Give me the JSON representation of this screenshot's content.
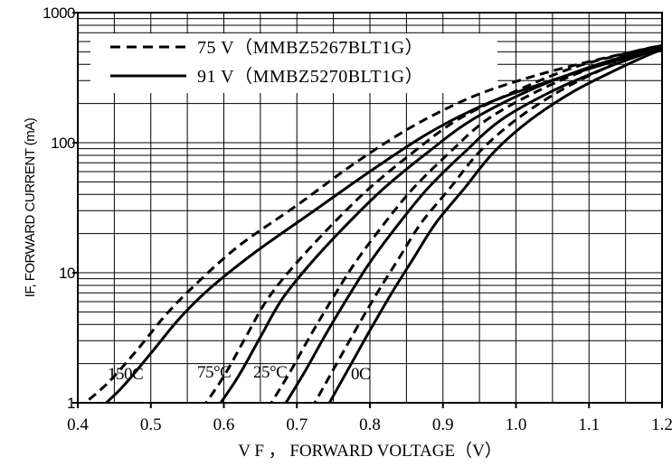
{
  "chart_data": {
    "type": "line",
    "title": "",
    "xlabel": "V F ， FORWARD VOLTAGE（V）",
    "ylabel": "IF, FORWARD CURRENT (mA)",
    "x_scale": "linear",
    "y_scale": "log",
    "xlim": [
      0.4,
      1.2
    ],
    "ylim": [
      1,
      1000
    ],
    "grid": true,
    "legend_position": "top-left",
    "x_ticks": [
      "0.4",
      "0.5",
      "0.6",
      "0.7",
      "0.8",
      "0.9",
      "1.0",
      "1.1",
      "1.2"
    ],
    "y_ticks": [
      "1",
      "10",
      "100",
      "1000"
    ],
    "legend": [
      {
        "style": "dashed",
        "label": "75 V（MMBZ5267BLT1G）"
      },
      {
        "style": "solid",
        "label": "91 V（MMBZ5270BLT1G）"
      }
    ],
    "temperature_labels": [
      "150C",
      "75°C",
      "25°C",
      "0C"
    ],
    "series": [
      {
        "group": "75 V",
        "temperature": "150C",
        "style": "dashed",
        "x": [
          0.4,
          0.44,
          0.48,
          0.52,
          0.56,
          0.62,
          0.7,
          0.78,
          0.86,
          0.94,
          1.02,
          1.1,
          1.16,
          1.2
        ],
        "y": [
          0.9,
          1.4,
          2.5,
          4.7,
          8.0,
          16,
          33,
          70,
          135,
          225,
          320,
          420,
          500,
          560
        ]
      },
      {
        "group": "91 V",
        "temperature": "150C",
        "style": "solid",
        "x": [
          0.42,
          0.46,
          0.5,
          0.54,
          0.58,
          0.64,
          0.72,
          0.8,
          0.88,
          0.96,
          1.04,
          1.12,
          1.2
        ],
        "y": [
          0.8,
          1.3,
          2.4,
          4.5,
          7.5,
          14,
          29,
          60,
          118,
          200,
          290,
          400,
          540
        ]
      },
      {
        "group": "75 V",
        "temperature": "75°C",
        "style": "dashed",
        "x": [
          0.57,
          0.6,
          0.63,
          0.66,
          0.7,
          0.75,
          0.8,
          0.86,
          0.92,
          1.0,
          1.08,
          1.16,
          1.2
        ],
        "y": [
          0.9,
          1.6,
          3.2,
          6.3,
          12,
          24,
          45,
          85,
          150,
          250,
          380,
          500,
          560
        ]
      },
      {
        "group": "91 V",
        "temperature": "75°C",
        "style": "solid",
        "x": [
          0.59,
          0.62,
          0.65,
          0.68,
          0.72,
          0.77,
          0.82,
          0.88,
          0.94,
          1.02,
          1.1,
          1.16,
          1.2
        ],
        "y": [
          0.9,
          1.6,
          3.2,
          6.3,
          12,
          24,
          45,
          85,
          150,
          255,
          380,
          480,
          550
        ]
      },
      {
        "group": "75 V",
        "temperature": "25°C",
        "style": "dashed",
        "x": [
          0.66,
          0.69,
          0.72,
          0.75,
          0.78,
          0.82,
          0.86,
          0.91,
          0.96,
          1.03,
          1.1,
          1.16,
          1.2
        ],
        "y": [
          0.9,
          1.7,
          3.4,
          6.5,
          12,
          24,
          45,
          85,
          150,
          250,
          370,
          480,
          560
        ]
      },
      {
        "group": "91 V",
        "temperature": "25°C",
        "style": "solid",
        "x": [
          0.68,
          0.71,
          0.74,
          0.77,
          0.8,
          0.84,
          0.88,
          0.93,
          0.98,
          1.05,
          1.12,
          1.17,
          1.2
        ],
        "y": [
          0.9,
          1.7,
          3.4,
          6.5,
          12,
          24,
          45,
          85,
          150,
          250,
          370,
          470,
          540
        ]
      },
      {
        "group": "75 V",
        "temperature": "0C",
        "style": "dashed",
        "x": [
          0.72,
          0.75,
          0.78,
          0.81,
          0.84,
          0.87,
          0.91,
          0.95,
          1.0,
          1.06,
          1.12,
          1.17,
          1.2
        ],
        "y": [
          0.9,
          1.8,
          3.6,
          7.0,
          13,
          24,
          45,
          85,
          150,
          250,
          370,
          480,
          550
        ]
      },
      {
        "group": "91 V",
        "temperature": "0C",
        "style": "solid",
        "x": [
          0.74,
          0.77,
          0.8,
          0.83,
          0.86,
          0.89,
          0.93,
          0.97,
          1.02,
          1.08,
          1.14,
          1.18,
          1.2
        ],
        "y": [
          0.9,
          1.8,
          3.6,
          7.0,
          13,
          24,
          45,
          85,
          150,
          250,
          370,
          470,
          520
        ]
      }
    ]
  }
}
